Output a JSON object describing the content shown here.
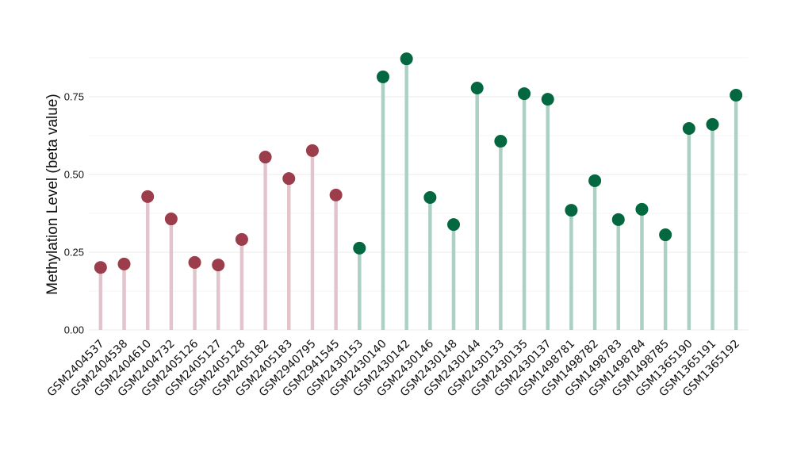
{
  "chart_data": {
    "type": "lollipop",
    "title": "",
    "xlabel": "",
    "ylabel": "Methylation Level (beta value)",
    "ylim": [
      0,
      0.875
    ],
    "yticks": [
      0,
      0.25,
      0.5,
      0.75
    ],
    "ytick_labels": [
      "0.00",
      "0.25",
      "0.50",
      "0.75"
    ],
    "grid": true,
    "categories": [
      "GSM2404537",
      "GSM2404538",
      "GSM2404610",
      "GSM2404732",
      "GSM2405126",
      "GSM2405127",
      "GSM2405128",
      "GSM2405182",
      "GSM2405183",
      "GSM2940795",
      "GSM2941545",
      "GSM2430153",
      "GSM2430140",
      "GSM2430142",
      "GSM2430146",
      "GSM2430148",
      "GSM2430144",
      "GSM2430133",
      "GSM2430135",
      "GSM2430137",
      "GSM1498781",
      "GSM1498782",
      "GSM1498783",
      "GSM1498784",
      "GSM1498785",
      "GSM1365190",
      "GSM1365191",
      "GSM1365192"
    ],
    "values": [
      0.201,
      0.212,
      0.429,
      0.357,
      0.217,
      0.209,
      0.291,
      0.556,
      0.487,
      0.577,
      0.434,
      0.263,
      0.814,
      0.872,
      0.426,
      0.339,
      0.778,
      0.607,
      0.76,
      0.742,
      0.385,
      0.48,
      0.355,
      0.388,
      0.306,
      0.648,
      0.661,
      0.755
    ],
    "groups": [
      "a",
      "a",
      "a",
      "a",
      "a",
      "a",
      "a",
      "a",
      "a",
      "a",
      "a",
      "b",
      "b",
      "b",
      "b",
      "b",
      "b",
      "b",
      "b",
      "b",
      "b",
      "b",
      "b",
      "b",
      "b",
      "b",
      "b",
      "b"
    ],
    "colors": {
      "a": {
        "point": "#9b3d4b",
        "stem": "#e2c5cc"
      },
      "b": {
        "point": "#03673f",
        "stem": "#acd0c3"
      }
    }
  }
}
